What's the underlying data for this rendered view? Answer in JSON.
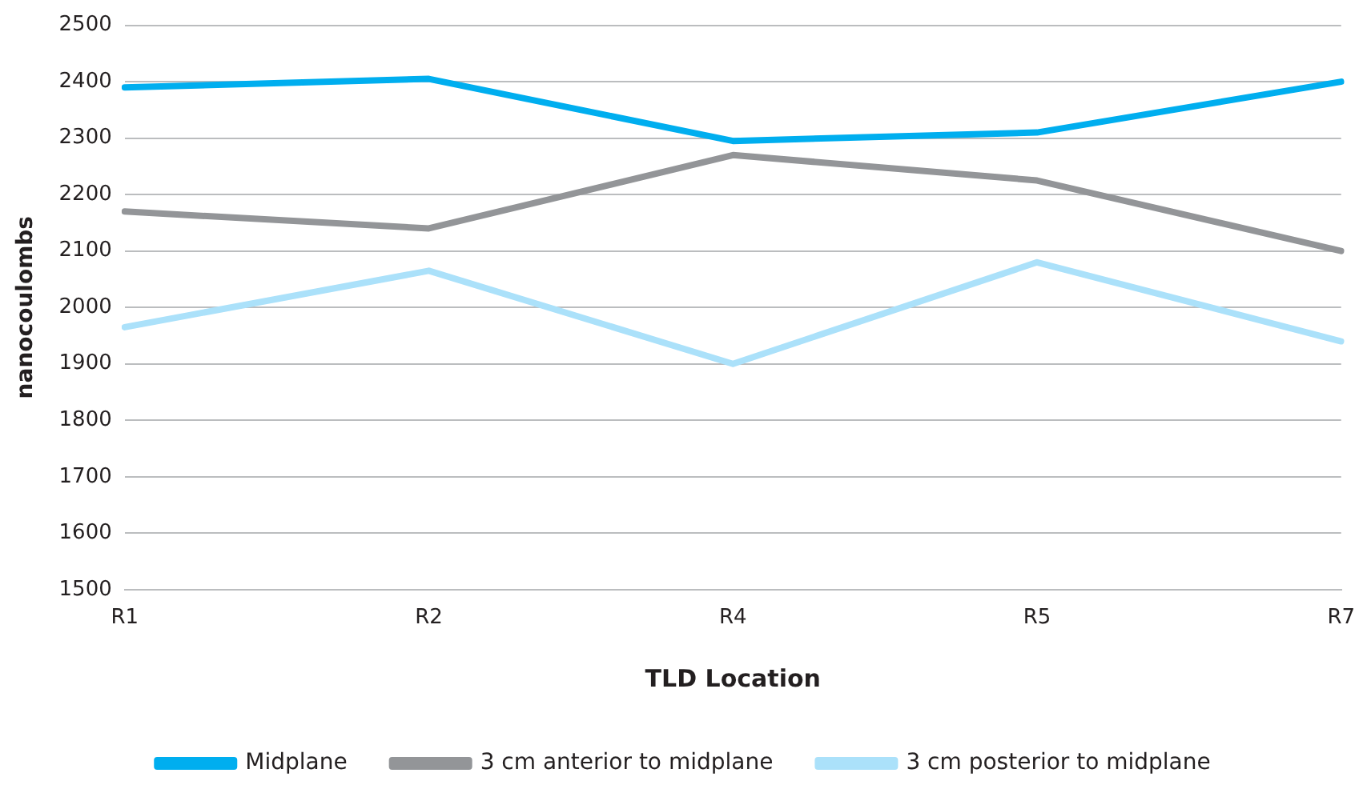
{
  "chart_data": {
    "type": "line",
    "xlabel": "TLD Location",
    "ylabel": "nanocoulombs",
    "categories": [
      "R1",
      "R2",
      "R4",
      "R5",
      "R7"
    ],
    "series": [
      {
        "name": "Midplane",
        "color": "#00aeef",
        "values": [
          2390,
          2405,
          2295,
          2310,
          2400
        ]
      },
      {
        "name": "3 cm anterior to midplane",
        "color": "#939598",
        "values": [
          2170,
          2140,
          2270,
          2225,
          2100
        ]
      },
      {
        "name": "3 cm posterior to midplane",
        "color": "#abe1fa",
        "values": [
          1965,
          2065,
          1900,
          2080,
          1940
        ]
      }
    ],
    "ylim": [
      1500,
      2500
    ],
    "yticks": [
      1500,
      1600,
      1700,
      1800,
      1900,
      2000,
      2100,
      2200,
      2300,
      2400,
      2500
    ],
    "grid": "y",
    "legend": "bottom",
    "marker": "none",
    "line_style": "solid"
  }
}
